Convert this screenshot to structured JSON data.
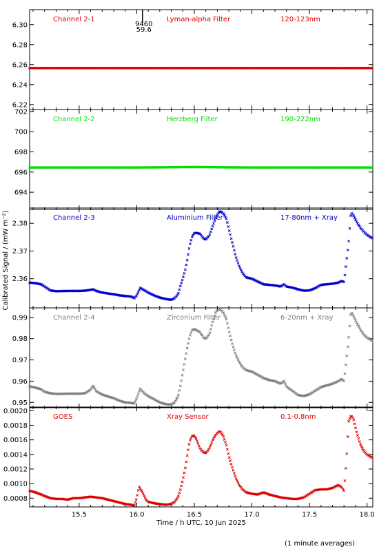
{
  "chart_data": {
    "type": "scatter",
    "xlabel": "Time / h UTC, 10 Jun 2025",
    "ylabel": "Calibrated Signal / (mW m⁻²)",
    "footnote": "(1 minute averages)",
    "xlim": [
      15.07,
      18.05
    ],
    "xticks": [
      15.5,
      16.0,
      16.5,
      17.0,
      17.5,
      18.0
    ],
    "xtick_labels": [
      "15.5",
      "16.0",
      "16.5",
      "17.0",
      "17.5",
      "18.0"
    ],
    "grid": false,
    "panels": [
      {
        "name": "Channel 2-1",
        "filter": "Lyman-alpha Filter",
        "band": "120-123nm",
        "color": "#dd0000",
        "ylim": [
          6.215,
          6.315
        ],
        "yticks": [
          6.22,
          6.24,
          6.26,
          6.28,
          6.3
        ],
        "ytick_labels": [
          "6.22",
          "6.24",
          "6.26",
          "6.28",
          "6.30"
        ],
        "annotation": {
          "x": 16.05,
          "lines": [
            "9460",
            "59.6"
          ]
        },
        "points": [
          [
            15.07,
            6.2565
          ],
          [
            15.5,
            6.2565
          ],
          [
            16.0,
            6.2565
          ],
          [
            16.5,
            6.2565
          ],
          [
            17.0,
            6.2565
          ],
          [
            17.5,
            6.2565
          ],
          [
            18.05,
            6.2565
          ]
        ]
      },
      {
        "name": "Channel 2-2",
        "filter": "Herzberg Filter",
        "band": "190-222nm",
        "color": "#00dd00",
        "ylim": [
          692.3,
          702.2
        ],
        "yticks": [
          694,
          696,
          698,
          700,
          702
        ],
        "ytick_labels": [
          "694",
          "696",
          "698",
          "700",
          "702"
        ],
        "points": [
          [
            15.07,
            696.45
          ],
          [
            15.5,
            696.45
          ],
          [
            16.0,
            696.45
          ],
          [
            16.5,
            696.5
          ],
          [
            17.0,
            696.45
          ],
          [
            17.5,
            696.45
          ],
          [
            18.05,
            696.45
          ]
        ]
      },
      {
        "name": "Channel 2-3",
        "filter": "Aluminium Filter",
        "band": "17-80nm + Xray",
        "color": "#0000cc",
        "ylim": [
          2.3495,
          2.3855
        ],
        "yticks": [
          2.36,
          2.37,
          2.38
        ],
        "ytick_labels": [
          "2.36",
          "2.37",
          "2.38"
        ],
        "points": [
          [
            15.07,
            2.3586
          ],
          [
            15.12,
            2.3584
          ],
          [
            15.17,
            2.358
          ],
          [
            15.2,
            2.3572
          ],
          [
            15.25,
            2.3558
          ],
          [
            15.3,
            2.3555
          ],
          [
            15.4,
            2.3556
          ],
          [
            15.5,
            2.3556
          ],
          [
            15.55,
            2.3557
          ],
          [
            15.6,
            2.356
          ],
          [
            15.62,
            2.3562
          ],
          [
            15.65,
            2.3556
          ],
          [
            15.7,
            2.355
          ],
          [
            15.75,
            2.3547
          ],
          [
            15.8,
            2.3544
          ],
          [
            15.85,
            2.354
          ],
          [
            15.9,
            2.3538
          ],
          [
            15.95,
            2.3536
          ],
          [
            15.98,
            2.353
          ],
          [
            16.0,
            2.354
          ],
          [
            16.03,
            2.3567
          ],
          [
            16.06,
            2.356
          ],
          [
            16.1,
            2.355
          ],
          [
            16.15,
            2.354
          ],
          [
            16.2,
            2.3532
          ],
          [
            16.25,
            2.3527
          ],
          [
            16.3,
            2.3524
          ],
          [
            16.33,
            2.353
          ],
          [
            16.36,
            2.3545
          ],
          [
            16.38,
            2.3575
          ],
          [
            16.4,
            2.36
          ],
          [
            16.42,
            2.363
          ],
          [
            16.44,
            2.367
          ],
          [
            16.46,
            2.372
          ],
          [
            16.48,
            2.375
          ],
          [
            16.5,
            2.3765
          ],
          [
            16.52,
            2.3765
          ],
          [
            16.55,
            2.3762
          ],
          [
            16.58,
            2.3745
          ],
          [
            16.6,
            2.3742
          ],
          [
            16.63,
            2.3755
          ],
          [
            16.66,
            2.379
          ],
          [
            16.69,
            2.3825
          ],
          [
            16.72,
            2.3843
          ],
          [
            16.75,
            2.3837
          ],
          [
            16.78,
            2.3815
          ],
          [
            16.8,
            2.378
          ],
          [
            16.83,
            2.373
          ],
          [
            16.86,
            2.368
          ],
          [
            16.89,
            2.3645
          ],
          [
            16.92,
            2.362
          ],
          [
            16.95,
            2.3605
          ],
          [
            17.0,
            2.36
          ],
          [
            17.05,
            2.359
          ],
          [
            17.1,
            2.358
          ],
          [
            17.15,
            2.3578
          ],
          [
            17.2,
            2.3576
          ],
          [
            17.25,
            2.3572
          ],
          [
            17.28,
            2.358
          ],
          [
            17.3,
            2.3572
          ],
          [
            17.35,
            2.3568
          ],
          [
            17.4,
            2.3562
          ],
          [
            17.45,
            2.3557
          ],
          [
            17.5,
            2.3558
          ],
          [
            17.55,
            2.3566
          ],
          [
            17.6,
            2.3578
          ],
          [
            17.65,
            2.358
          ],
          [
            17.7,
            2.3582
          ],
          [
            17.75,
            2.3586
          ],
          [
            17.78,
            2.3592
          ],
          [
            17.8,
            2.3588
          ],
          [
            17.82,
            2.366
          ],
          [
            17.84,
            2.373
          ],
          [
            17.86,
            2.3838
          ],
          [
            17.88,
            2.383
          ],
          [
            17.91,
            2.3805
          ],
          [
            17.94,
            2.3785
          ],
          [
            17.97,
            2.377
          ],
          [
            18.0,
            2.3758
          ],
          [
            18.05,
            2.3745
          ]
        ]
      },
      {
        "name": "Channel 2-4",
        "filter": "Zirconium Filter",
        "band": "6-20nm + Xray",
        "color": "#808080",
        "ylim": [
          0.9475,
          0.9945
        ],
        "yticks": [
          0.95,
          0.96,
          0.97,
          0.98,
          0.99
        ],
        "ytick_labels": [
          "0.95",
          "0.96",
          "0.97",
          "0.98",
          "0.99"
        ],
        "points": [
          [
            15.07,
            0.9575
          ],
          [
            15.12,
            0.957
          ],
          [
            15.17,
            0.9562
          ],
          [
            15.2,
            0.955
          ],
          [
            15.25,
            0.9543
          ],
          [
            15.3,
            0.954
          ],
          [
            15.4,
            0.9541
          ],
          [
            15.5,
            0.9541
          ],
          [
            15.55,
            0.9543
          ],
          [
            15.6,
            0.956
          ],
          [
            15.62,
            0.958
          ],
          [
            15.65,
            0.9552
          ],
          [
            15.7,
            0.9537
          ],
          [
            15.75,
            0.9528
          ],
          [
            15.8,
            0.952
          ],
          [
            15.85,
            0.9508
          ],
          [
            15.9,
            0.95
          ],
          [
            15.95,
            0.9498
          ],
          [
            15.98,
            0.9495
          ],
          [
            16.0,
            0.952
          ],
          [
            16.03,
            0.9565
          ],
          [
            16.06,
            0.9545
          ],
          [
            16.1,
            0.953
          ],
          [
            16.15,
            0.9515
          ],
          [
            16.2,
            0.95
          ],
          [
            16.25,
            0.9492
          ],
          [
            16.3,
            0.949
          ],
          [
            16.33,
            0.95
          ],
          [
            16.36,
            0.953
          ],
          [
            16.38,
            0.958
          ],
          [
            16.4,
            0.964
          ],
          [
            16.42,
            0.97
          ],
          [
            16.44,
            0.976
          ],
          [
            16.46,
            0.981
          ],
          [
            16.48,
            0.984
          ],
          [
            16.5,
            0.9845
          ],
          [
            16.52,
            0.984
          ],
          [
            16.55,
            0.983
          ],
          [
            16.58,
            0.9805
          ],
          [
            16.6,
            0.98
          ],
          [
            16.63,
            0.982
          ],
          [
            16.66,
            0.988
          ],
          [
            16.69,
            0.993
          ],
          [
            16.72,
            0.994
          ],
          [
            16.75,
            0.9925
          ],
          [
            16.78,
            0.989
          ],
          [
            16.8,
            0.984
          ],
          [
            16.83,
            0.9775
          ],
          [
            16.86,
            0.9725
          ],
          [
            16.89,
            0.969
          ],
          [
            16.92,
            0.9665
          ],
          [
            16.95,
            0.9652
          ],
          [
            17.0,
            0.9645
          ],
          [
            17.05,
            0.963
          ],
          [
            17.1,
            0.9615
          ],
          [
            17.15,
            0.9605
          ],
          [
            17.2,
            0.96
          ],
          [
            17.25,
            0.9588
          ],
          [
            17.28,
            0.96
          ],
          [
            17.3,
            0.9575
          ],
          [
            17.35,
            0.9555
          ],
          [
            17.4,
            0.9535
          ],
          [
            17.45,
            0.953
          ],
          [
            17.5,
            0.9538
          ],
          [
            17.55,
            0.9555
          ],
          [
            17.6,
            0.9572
          ],
          [
            17.65,
            0.958
          ],
          [
            17.7,
            0.9588
          ],
          [
            17.75,
            0.96
          ],
          [
            17.78,
            0.961
          ],
          [
            17.8,
            0.96
          ],
          [
            17.82,
            0.97
          ],
          [
            17.84,
            0.98
          ],
          [
            17.86,
            0.9925
          ],
          [
            17.88,
            0.991
          ],
          [
            17.91,
            0.9875
          ],
          [
            17.94,
            0.9845
          ],
          [
            17.97,
            0.982
          ],
          [
            18.0,
            0.9805
          ],
          [
            18.05,
            0.979
          ]
        ]
      },
      {
        "name": "GOES",
        "filter": "Xray Sensor",
        "band": "0.1-0.8nm",
        "color": "#dd0000",
        "ylim": [
          0.00068,
          0.00205
        ],
        "yticks": [
          0.0008,
          0.001,
          0.0012,
          0.0014,
          0.0016,
          0.0018,
          0.002
        ],
        "ytick_labels": [
          "0.0008",
          "0.0010",
          "0.0012",
          "0.0014",
          "0.0016",
          "0.0018",
          "0.0020"
        ],
        "points": [
          [
            15.07,
            0.0009
          ],
          [
            15.12,
            0.00088
          ],
          [
            15.17,
            0.00085
          ],
          [
            15.2,
            0.00083
          ],
          [
            15.25,
            0.0008
          ],
          [
            15.3,
            0.00079
          ],
          [
            15.35,
            0.00079
          ],
          [
            15.4,
            0.00078
          ],
          [
            15.45,
            0.0008
          ],
          [
            15.5,
            0.0008
          ],
          [
            15.55,
            0.00081
          ],
          [
            15.6,
            0.00082
          ],
          [
            15.65,
            0.00081
          ],
          [
            15.7,
            0.0008
          ],
          [
            15.75,
            0.00078
          ],
          [
            15.8,
            0.00076
          ],
          [
            15.85,
            0.00074
          ],
          [
            15.9,
            0.00072
          ],
          [
            15.95,
            0.00071
          ],
          [
            15.98,
            0.0007
          ],
          [
            16.0,
            0.0008
          ],
          [
            16.02,
            0.00096
          ],
          [
            16.05,
            0.00088
          ],
          [
            16.08,
            0.00078
          ],
          [
            16.1,
            0.00075
          ],
          [
            16.15,
            0.00073
          ],
          [
            16.2,
            0.00072
          ],
          [
            16.25,
            0.00071
          ],
          [
            16.3,
            0.00072
          ],
          [
            16.33,
            0.00075
          ],
          [
            16.36,
            0.00082
          ],
          [
            16.38,
            0.00092
          ],
          [
            16.4,
            0.00105
          ],
          [
            16.42,
            0.0012
          ],
          [
            16.44,
            0.0014
          ],
          [
            16.46,
            0.00158
          ],
          [
            16.48,
            0.00165
          ],
          [
            16.5,
            0.00166
          ],
          [
            16.52,
            0.0016
          ],
          [
            16.55,
            0.00148
          ],
          [
            16.58,
            0.00143
          ],
          [
            16.6,
            0.00142
          ],
          [
            16.63,
            0.00148
          ],
          [
            16.66,
            0.0016
          ],
          [
            16.69,
            0.00168
          ],
          [
            16.72,
            0.00172
          ],
          [
            16.75,
            0.00166
          ],
          [
            16.78,
            0.00152
          ],
          [
            16.8,
            0.00138
          ],
          [
            16.83,
            0.00122
          ],
          [
            16.86,
            0.00108
          ],
          [
            16.89,
            0.00098
          ],
          [
            16.92,
            0.00092
          ],
          [
            16.95,
            0.00088
          ],
          [
            17.0,
            0.00086
          ],
          [
            17.05,
            0.00085
          ],
          [
            17.1,
            0.00088
          ],
          [
            17.15,
            0.00085
          ],
          [
            17.2,
            0.00083
          ],
          [
            17.25,
            0.00081
          ],
          [
            17.3,
            0.0008
          ],
          [
            17.35,
            0.00079
          ],
          [
            17.4,
            0.00079
          ],
          [
            17.45,
            0.00081
          ],
          [
            17.5,
            0.00086
          ],
          [
            17.55,
            0.00091
          ],
          [
            17.6,
            0.00092
          ],
          [
            17.65,
            0.00092
          ],
          [
            17.7,
            0.00094
          ],
          [
            17.75,
            0.00098
          ],
          [
            17.78,
            0.00095
          ],
          [
            17.8,
            0.0009
          ],
          [
            17.82,
            0.0013
          ],
          [
            17.84,
            0.00185
          ],
          [
            17.86,
            0.00193
          ],
          [
            17.88,
            0.0019
          ],
          [
            17.91,
            0.0017
          ],
          [
            17.94,
            0.00155
          ],
          [
            17.97,
            0.00145
          ],
          [
            18.0,
            0.0014
          ],
          [
            18.05,
            0.00135
          ]
        ]
      }
    ]
  }
}
